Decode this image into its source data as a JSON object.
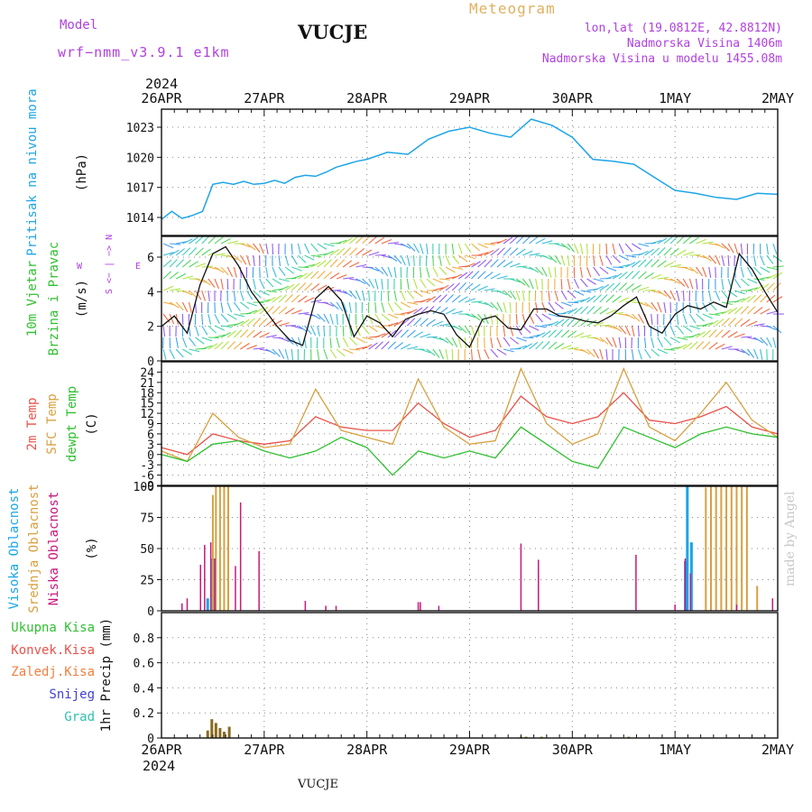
{
  "header": {
    "model_label": "Model",
    "model_value": "wrf−nmm_v3.9.1  e1km",
    "station": "VUCJE",
    "product": "Meteogram",
    "lonlat": "lon,lat (19.0812E, 42.8812N)",
    "elevation": "Nadmorska Visina 1406m",
    "model_elevation": "Nadmorska Visina u modelu 1455.08m",
    "year_top": "2024",
    "year_bottom": "2024",
    "footer_station": "VUCJE",
    "credit": "made by Angel"
  },
  "colors": {
    "pressure": "#1ea5e6",
    "temp2m": "#e8524a",
    "sfc": "#d8a040",
    "dew": "#30c030",
    "high_cloud": "#19a6e6",
    "mid_cloud": "#d8a040",
    "low_cloud": "#c8187c",
    "wind_label": "#30c030",
    "compass": "#b040e0"
  },
  "dates": [
    "26APR",
    "27APR",
    "28APR",
    "29APR",
    "30APR",
    "1MAY",
    "2MAY"
  ],
  "panel_labels": {
    "pressure": {
      "name": "Pritisak na nivou mora",
      "unit": "(hPa)"
    },
    "wind": {
      "name1": "10m Vjetar",
      "name2": "Brzina i Pravac",
      "unit": "(m/s)",
      "compass": "S <− ∣ −> N",
      "compass_w": "W",
      "compass_e": "E"
    },
    "temp": {
      "name1": "2m Temp",
      "name2": "SFC Temp",
      "name3": "dewpt Temp",
      "unit": "(C)"
    },
    "cloud": {
      "name1": "Visoka Oblacnost",
      "name2": "Srednja Oblacnost",
      "name3": "Niska Oblacnost",
      "unit": "(%)"
    },
    "precip": {
      "total": "Ukupna Kisa",
      "convective": "Konvek.Kisa",
      "freezing": "Zaledj.Kisa",
      "snow": "Snijeg",
      "hail": "Grad",
      "unit": "1hr Precip (mm)"
    }
  },
  "chart_data": [
    {
      "type": "line",
      "name": "pressure",
      "ylabel": "Pritisak na nivou mora (hPa)",
      "ylim": [
        1012.2,
        1024.8
      ],
      "yticks": [
        "1023",
        "1020",
        "1017",
        "1014"
      ],
      "x_days": [
        0,
        0.1,
        0.2,
        0.3,
        0.4,
        0.5,
        0.6,
        0.7,
        0.8,
        0.9,
        1.0,
        1.1,
        1.2,
        1.3,
        1.4,
        1.5,
        1.6,
        1.7,
        1.8,
        1.9,
        2.0,
        2.2,
        2.4,
        2.6,
        2.8,
        3.0,
        3.2,
        3.4,
        3.6,
        3.8,
        4.0,
        4.2,
        4.4,
        4.6,
        4.8,
        5.0,
        5.2,
        5.4,
        5.6,
        5.8,
        6.0
      ],
      "values": [
        1013.8,
        1014.6,
        1013.9,
        1014.2,
        1014.6,
        1017.3,
        1017.5,
        1017.3,
        1017.6,
        1017.3,
        1017.4,
        1017.7,
        1017.4,
        1018.0,
        1018.2,
        1018.1,
        1018.5,
        1019.0,
        1019.3,
        1019.6,
        1019.8,
        1020.5,
        1020.3,
        1021.8,
        1022.6,
        1023.0,
        1022.4,
        1022.0,
        1023.8,
        1023.2,
        1022.0,
        1019.8,
        1019.6,
        1019.3,
        1018.0,
        1016.7,
        1016.4,
        1016.0,
        1015.8,
        1016.4,
        1016.3
      ],
      "grid": true
    },
    {
      "type": "line",
      "name": "wind_speed",
      "ylabel": "10m Vjetar Brzina i Pravac (m/s)",
      "ylim": [
        0,
        7.2
      ],
      "yticks": [
        "6",
        "4",
        "2",
        "0"
      ],
      "series": [
        {
          "name": "speed",
          "x_days": [
            0,
            0.125,
            0.25,
            0.375,
            0.5,
            0.625,
            0.75,
            0.875,
            1.0,
            1.125,
            1.25,
            1.375,
            1.5,
            1.625,
            1.75,
            1.875,
            2.0,
            2.125,
            2.25,
            2.375,
            2.5,
            2.625,
            2.75,
            2.875,
            3.0,
            3.125,
            3.25,
            3.375,
            3.5,
            3.625,
            3.75,
            3.875,
            4.0,
            4.125,
            4.25,
            4.375,
            4.5,
            4.625,
            4.75,
            4.875,
            5.0,
            5.125,
            5.25,
            5.375,
            5.5,
            5.625,
            5.75,
            5.875,
            6.0
          ],
          "values": [
            2.0,
            2.6,
            1.6,
            4.4,
            6.2,
            6.6,
            5.5,
            4.0,
            3.0,
            2.0,
            1.2,
            0.9,
            3.6,
            4.3,
            3.5,
            1.4,
            2.6,
            2.2,
            1.4,
            2.4,
            2.7,
            2.9,
            2.7,
            1.5,
            0.8,
            2.4,
            2.6,
            1.9,
            1.8,
            3.0,
            3.0,
            2.6,
            2.5,
            2.3,
            2.2,
            2.6,
            3.2,
            3.7,
            2.0,
            1.6,
            2.7,
            3.2,
            3.0,
            3.4,
            3.1,
            6.2,
            5.3,
            4.0,
            2.8
          ]
        }
      ]
    },
    {
      "type": "line",
      "name": "temperature",
      "ylabel": "(C)",
      "ylim": [
        -9,
        27
      ],
      "yticks": [
        "24",
        "21",
        "18",
        "15",
        "12",
        "9",
        "6",
        "3",
        "0",
        "-3",
        "-6",
        "-9"
      ],
      "series": [
        {
          "name": "2m Temp",
          "x_days": [
            0,
            0.25,
            0.5,
            0.75,
            1.0,
            1.25,
            1.5,
            1.75,
            2.0,
            2.25,
            2.5,
            2.75,
            3.0,
            3.25,
            3.5,
            3.75,
            4.0,
            4.25,
            4.5,
            4.75,
            5.0,
            5.25,
            5.5,
            5.75,
            6.0
          ],
          "values": [
            2,
            0,
            6,
            4,
            3,
            4,
            11,
            8,
            7,
            7,
            15,
            9,
            5,
            7,
            17,
            11,
            9,
            11,
            18,
            10,
            9,
            11,
            14,
            8,
            6
          ]
        },
        {
          "name": "SFC Temp",
          "x_days": [
            0,
            0.25,
            0.5,
            0.75,
            1.0,
            1.25,
            1.5,
            1.75,
            2.0,
            2.25,
            2.5,
            2.75,
            3.0,
            3.25,
            3.5,
            3.75,
            4.0,
            4.25,
            4.5,
            4.75,
            5.0,
            5.25,
            5.5,
            5.75,
            6.0
          ],
          "values": [
            1,
            -2,
            12,
            5,
            2,
            3,
            19,
            7,
            5,
            3,
            22,
            8,
            3,
            4,
            25,
            9,
            3,
            6,
            25,
            8,
            4,
            12,
            21,
            10,
            5
          ]
        },
        {
          "name": "dewpt Temp",
          "x_days": [
            0,
            0.25,
            0.5,
            0.75,
            1.0,
            1.25,
            1.5,
            1.75,
            2.0,
            2.25,
            2.5,
            2.75,
            3.0,
            3.25,
            3.5,
            3.75,
            4.0,
            4.25,
            4.5,
            4.75,
            5.0,
            5.25,
            5.5,
            5.75,
            6.0
          ],
          "values": [
            0,
            -2,
            3,
            4,
            1,
            -1,
            1,
            5,
            2,
            -6,
            1,
            -1,
            1,
            -1,
            8,
            3,
            -2,
            -4,
            8,
            5,
            2,
            6,
            8,
            6,
            5
          ]
        }
      ]
    },
    {
      "type": "bar",
      "name": "cloud_cover",
      "ylabel": "(%)",
      "ylim": [
        0,
        100
      ],
      "yticks": [
        "100",
        "75",
        "50",
        "25",
        "0"
      ],
      "series": [
        {
          "name": "Visoka Oblacnost",
          "x_days": [
            0.45,
            0.5,
            5.1,
            5.12,
            5.16
          ],
          "values": [
            10,
            42,
            40,
            100,
            55
          ]
        },
        {
          "name": "Srednja Oblacnost",
          "x_days": [
            0.5,
            0.53,
            0.57,
            0.61,
            0.65,
            5.3,
            5.35,
            5.4,
            5.45,
            5.5,
            5.55,
            5.6,
            5.65,
            5.7,
            5.8
          ],
          "values": [
            93,
            100,
            100,
            100,
            100,
            99,
            100,
            100,
            100,
            100,
            100,
            100,
            100,
            100,
            20
          ]
        },
        {
          "name": "Niska Oblacnost",
          "x_days": [
            0.2,
            0.25,
            0.38,
            0.42,
            0.48,
            0.52,
            0.72,
            0.77,
            0.95,
            1.4,
            1.6,
            1.7,
            2.5,
            2.52,
            2.7,
            3.5,
            3.67,
            4.62,
            5.0,
            5.1,
            5.15,
            5.6,
            5.95
          ],
          "values": [
            6,
            10,
            37,
            53,
            55,
            42,
            36,
            87,
            48,
            8,
            4,
            4,
            7,
            7,
            4,
            54,
            41,
            45,
            5,
            42,
            30,
            5,
            10
          ]
        }
      ]
    },
    {
      "type": "bar",
      "name": "precipitation",
      "ylabel": "1hr Precip (mm)",
      "ylim": [
        0,
        1.0
      ],
      "yticks": [
        "0.8",
        "0.6",
        "0.4",
        "0.2",
        "0"
      ],
      "series": [
        {
          "name": "Ukupna Kisa",
          "x_days": [
            0.45,
            0.49,
            0.53,
            0.57,
            0.61,
            0.66,
            3.5,
            3.55,
            3.7,
            4.55
          ],
          "values": [
            0.06,
            0.15,
            0.12,
            0.08,
            0.05,
            0.09,
            0.01,
            0.01,
            0.01,
            0.01
          ]
        }
      ]
    }
  ]
}
